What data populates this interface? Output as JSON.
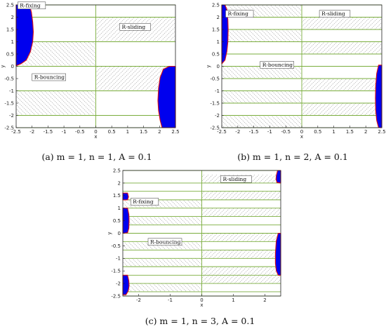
{
  "chart_data": [
    {
      "id": "a",
      "type": "phase-diagram",
      "caption": "(a) m = 1, n = 1, A = 0.1",
      "xlabel": "x",
      "ylabel": "y",
      "xlim": [
        -2.5,
        2.5
      ],
      "ylim": [
        -2.5,
        2.5
      ],
      "xticks": [
        "-2.5",
        "-2",
        "-1.5",
        "-1",
        "-0.5",
        "0",
        "0.5",
        "1",
        "1.5",
        "2",
        "2.5"
      ],
      "yticks": [
        "2.5",
        "2",
        "1.5",
        "1",
        "0.5",
        "0",
        "-0.5",
        "-1",
        "-1.5",
        "-2",
        "-2.5"
      ],
      "green_lines_y": [
        2.5,
        2.0,
        1.0,
        0.0,
        -1.0,
        -2.0,
        -2.5
      ],
      "hatched_bands": [
        [
          1.0,
          2.0,
          "right"
        ],
        [
          0.0,
          1.0,
          "left"
        ],
        [
          -1.0,
          0.0,
          "right"
        ],
        [
          -2.0,
          -1.0,
          "left"
        ]
      ],
      "blue_regions": [
        [
          [
            -2.5,
            2.5
          ],
          [
            -2.08,
            2.5
          ],
          [
            -2.02,
            2.2
          ],
          [
            -1.98,
            1.8
          ],
          [
            -1.96,
            1.4
          ],
          [
            -1.98,
            1.0
          ],
          [
            -2.05,
            0.6
          ],
          [
            -2.18,
            0.25
          ],
          [
            -2.35,
            0.1
          ],
          [
            -2.5,
            0.02
          ]
        ],
        [
          [
            2.5,
            0.0
          ],
          [
            2.3,
            0.0
          ],
          [
            2.12,
            -0.12
          ],
          [
            2.02,
            -0.45
          ],
          [
            1.97,
            -0.9
          ],
          [
            1.95,
            -1.4
          ],
          [
            1.97,
            -1.8
          ],
          [
            2.02,
            -2.2
          ],
          [
            2.08,
            -2.5
          ],
          [
            2.5,
            -2.5
          ]
        ]
      ],
      "labels": [
        {
          "text": "R-fixing",
          "x": -2.45,
          "y": 2.42
        },
        {
          "text": "R-sliding",
          "x": 0.75,
          "y": 1.55
        },
        {
          "text": "R-bouncing",
          "x": -2.0,
          "y": -0.5
        }
      ]
    },
    {
      "id": "b",
      "type": "phase-diagram",
      "caption": "(b) m = 1, n = 2, A = 0.1",
      "xlabel": "x",
      "ylabel": "y",
      "xlim": [
        -2.5,
        2.5
      ],
      "ylim": [
        -2.5,
        2.5
      ],
      "xticks": [
        "-2.5",
        "-2",
        "-1.5",
        "-1",
        "-0.5",
        "0",
        "0.5",
        "1",
        "1.5",
        "2",
        "2.5"
      ],
      "yticks": [
        "2.5",
        "2",
        "1.5",
        "1",
        "0.5",
        "0",
        "-0.5",
        "-1",
        "-1.5",
        "-2",
        "-2.5"
      ],
      "green_lines_y": [
        2.5,
        2.0,
        1.5,
        1.0,
        0.5,
        0.0,
        -0.5,
        -1.0,
        -1.5,
        -2.0,
        -2.5
      ],
      "hatched_bands": [
        [
          2.0,
          2.5,
          "left"
        ],
        [
          1.5,
          2.0,
          "right"
        ],
        [
          1.0,
          1.5,
          "left"
        ],
        [
          0.5,
          1.0,
          "right"
        ],
        [
          -0.5,
          0.0,
          "left"
        ],
        [
          -1.0,
          -0.5,
          "right"
        ],
        [
          -1.5,
          -1.0,
          "left"
        ],
        [
          -2.0,
          -1.5,
          "right"
        ],
        [
          -2.5,
          -2.0,
          "left"
        ]
      ],
      "blue_regions": [
        [
          [
            -2.5,
            2.5
          ],
          [
            -2.4,
            2.5
          ],
          [
            -2.34,
            2.3
          ],
          [
            -2.31,
            1.9
          ],
          [
            -2.3,
            1.5
          ],
          [
            -2.31,
            1.0
          ],
          [
            -2.34,
            0.6
          ],
          [
            -2.4,
            0.25
          ],
          [
            -2.5,
            0.1
          ]
        ],
        [
          [
            2.5,
            0.05
          ],
          [
            2.4,
            0.05
          ],
          [
            2.34,
            -0.3
          ],
          [
            2.31,
            -0.8
          ],
          [
            2.3,
            -1.3
          ],
          [
            2.31,
            -1.8
          ],
          [
            2.34,
            -2.2
          ],
          [
            2.4,
            -2.5
          ],
          [
            2.5,
            -2.5
          ]
        ]
      ],
      "labels": [
        {
          "text": "R-fixing",
          "x": -2.38,
          "y": 2.08
        },
        {
          "text": "R-sliding",
          "x": 0.55,
          "y": 2.08
        },
        {
          "text": "R-bouncing",
          "x": -1.3,
          "y": 0.0
        }
      ]
    },
    {
      "id": "c",
      "type": "phase-diagram",
      "caption": "(c) m = 1, n = 3, A = 0.1",
      "xlabel": "x",
      "ylabel": "y",
      "xlim": [
        -2.5,
        2.5
      ],
      "ylim": [
        -2.5,
        2.5
      ],
      "xticks": [
        "-2",
        "-1",
        "0",
        "1",
        "2"
      ],
      "yticks": [
        "2.5",
        "2",
        "1.5",
        "1",
        "0.5",
        "0",
        "-0.5",
        "-1",
        "-1.5",
        "-2",
        "-2.5"
      ],
      "green_lines_y": [
        2.5,
        2.0,
        1.67,
        1.33,
        1.0,
        0.67,
        0.33,
        0.0,
        -0.33,
        -0.67,
        -1.0,
        -1.33,
        -1.67,
        -2.0,
        -2.33,
        -2.5
      ],
      "hatched_bands": [
        [
          2.0,
          2.33,
          "right"
        ],
        [
          1.33,
          1.67,
          "right"
        ],
        [
          1.0,
          1.33,
          "left"
        ],
        [
          0.67,
          1.0,
          "right"
        ],
        [
          0.33,
          0.67,
          "left"
        ],
        [
          -0.33,
          0.0,
          "right"
        ],
        [
          -0.67,
          -0.33,
          "left"
        ],
        [
          -1.0,
          -0.67,
          "right"
        ],
        [
          -1.33,
          -1.0,
          "left"
        ],
        [
          -1.67,
          -1.33,
          "right"
        ],
        [
          -2.0,
          -1.67,
          "right"
        ],
        [
          -2.33,
          -2.0,
          "left"
        ]
      ],
      "blue_regions": [
        [
          [
            -2.5,
            1.6
          ],
          [
            -2.35,
            1.6
          ],
          [
            -2.32,
            1.45
          ],
          [
            -2.35,
            1.33
          ],
          [
            -2.5,
            1.33
          ]
        ],
        [
          [
            -2.5,
            1.0
          ],
          [
            -2.35,
            1.0
          ],
          [
            -2.31,
            0.75
          ],
          [
            -2.3,
            0.5
          ],
          [
            -2.31,
            0.2
          ],
          [
            -2.35,
            0.02
          ],
          [
            -2.5,
            0.0
          ]
        ],
        [
          [
            -2.5,
            -1.67
          ],
          [
            -2.35,
            -1.67
          ],
          [
            -2.31,
            -1.9
          ],
          [
            -2.3,
            -2.1
          ],
          [
            -2.33,
            -2.3
          ],
          [
            -2.4,
            -2.45
          ],
          [
            -2.5,
            -2.45
          ]
        ],
        [
          [
            2.5,
            2.5
          ],
          [
            2.4,
            2.5
          ],
          [
            2.36,
            2.3
          ],
          [
            2.35,
            2.15
          ],
          [
            2.38,
            2.02
          ],
          [
            2.5,
            2.0
          ]
        ],
        [
          [
            2.5,
            0.0
          ],
          [
            2.42,
            0.0
          ],
          [
            2.36,
            -0.3
          ],
          [
            2.33,
            -0.8
          ],
          [
            2.33,
            -1.2
          ],
          [
            2.36,
            -1.5
          ],
          [
            2.42,
            -1.67
          ],
          [
            2.5,
            -1.67
          ]
        ]
      ],
      "labels": [
        {
          "text": "R-fixing",
          "x": -2.25,
          "y": 1.2
        },
        {
          "text": "R-sliding",
          "x": 0.6,
          "y": 2.1
        },
        {
          "text": "R-bouncing",
          "x": -1.7,
          "y": -0.4
        }
      ]
    }
  ],
  "colors": {
    "grid_green": "#7aad3c",
    "hatch": "#a6a6a6",
    "region_fill": "#0000ee",
    "region_edge": "#e01010",
    "axis": "#222222"
  }
}
